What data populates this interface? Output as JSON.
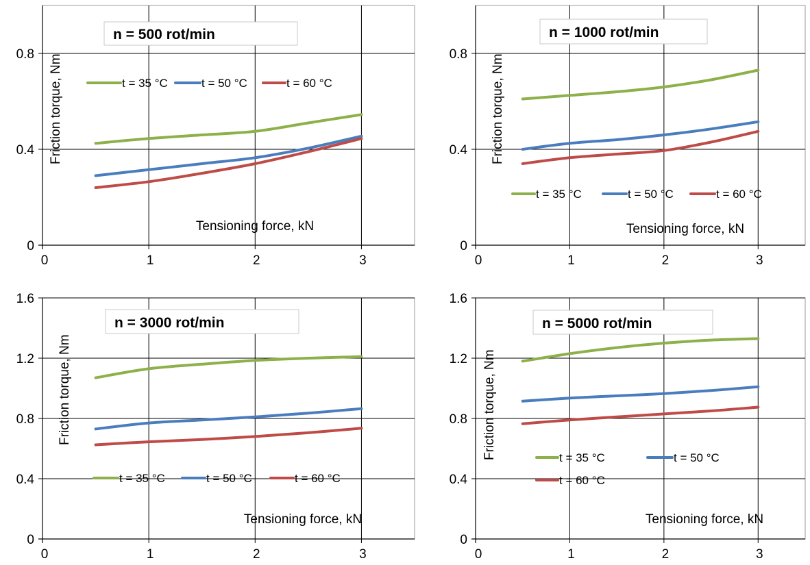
{
  "colors": {
    "green": "#8db04a",
    "blue": "#4a7dbd",
    "red": "#be4b48",
    "grid": "#000000"
  },
  "chart_data": [
    {
      "type": "line",
      "title": "n = 500 rot/min",
      "xlabel": "Tensioning force, kN",
      "ylabel": "Friction torque, Nm",
      "xlim": [
        0,
        3.5
      ],
      "ylim": [
        0,
        1.0
      ],
      "xticks": [
        0,
        1,
        2,
        3
      ],
      "yticks": [
        0,
        0.4,
        0.8
      ],
      "grid": true,
      "legend": "top",
      "series": [
        {
          "name": "t = 35 °C",
          "color": "green",
          "x": [
            0.5,
            1,
            1.5,
            2,
            2.5,
            3
          ],
          "y": [
            0.425,
            0.445,
            0.46,
            0.475,
            0.51,
            0.545
          ]
        },
        {
          "name": "t = 50 °C",
          "color": "blue",
          "x": [
            0.5,
            1,
            1.5,
            2,
            2.5,
            3
          ],
          "y": [
            0.29,
            0.315,
            0.34,
            0.365,
            0.405,
            0.455
          ]
        },
        {
          "name": "t = 60 °C",
          "color": "red",
          "x": [
            0.5,
            1,
            1.5,
            2,
            2.5,
            3
          ],
          "y": [
            0.24,
            0.265,
            0.3,
            0.34,
            0.39,
            0.445
          ]
        }
      ]
    },
    {
      "type": "line",
      "title": "n = 1000 rot/min",
      "xlabel": "Tensioning force, kN",
      "ylabel": "Friction torque, Nm",
      "xlim": [
        0,
        3.5
      ],
      "ylim": [
        0,
        1.0
      ],
      "xticks": [
        0,
        1,
        2,
        3
      ],
      "yticks": [
        0,
        0.4,
        0.8
      ],
      "grid": true,
      "legend": "middle",
      "series": [
        {
          "name": "t = 35 °C",
          "color": "green",
          "x": [
            0.5,
            1,
            1.5,
            2,
            2.5,
            3
          ],
          "y": [
            0.61,
            0.625,
            0.64,
            0.66,
            0.69,
            0.73
          ]
        },
        {
          "name": "t = 50 °C",
          "color": "blue",
          "x": [
            0.5,
            1,
            1.5,
            2,
            2.5,
            3
          ],
          "y": [
            0.4,
            0.425,
            0.44,
            0.46,
            0.485,
            0.515
          ]
        },
        {
          "name": "t = 60 °C",
          "color": "red",
          "x": [
            0.5,
            1,
            1.5,
            2,
            2.5,
            3
          ],
          "y": [
            0.34,
            0.365,
            0.38,
            0.395,
            0.43,
            0.475
          ]
        }
      ]
    },
    {
      "type": "line",
      "title": "n = 3000 rot/min",
      "xlabel": "Tensioning force, kN",
      "ylabel": "Friction torque, Nm",
      "xlim": [
        0,
        3.5
      ],
      "ylim": [
        0,
        1.6
      ],
      "xticks": [
        0,
        1,
        2,
        3
      ],
      "yticks": [
        0,
        0.4,
        0.8,
        1.2,
        1.6
      ],
      "grid": true,
      "legend": "bottom",
      "series": [
        {
          "name": "t = 35 °C",
          "color": "green",
          "x": [
            0.5,
            1,
            1.5,
            2,
            2.5,
            3
          ],
          "y": [
            1.07,
            1.13,
            1.16,
            1.185,
            1.2,
            1.21
          ]
        },
        {
          "name": "t = 50 °C",
          "color": "blue",
          "x": [
            0.5,
            1,
            1.5,
            2,
            2.5,
            3
          ],
          "y": [
            0.73,
            0.77,
            0.79,
            0.81,
            0.835,
            0.865
          ]
        },
        {
          "name": "t = 60 °C",
          "color": "red",
          "x": [
            0.5,
            1,
            1.5,
            2,
            2.5,
            3
          ],
          "y": [
            0.625,
            0.645,
            0.66,
            0.68,
            0.705,
            0.735
          ]
        }
      ]
    },
    {
      "type": "line",
      "title": "n = 5000 rot/min",
      "xlabel": "Tensioning force, kN",
      "ylabel": "Friction torque, Nm",
      "xlim": [
        0,
        3.5
      ],
      "ylim": [
        0,
        1.6
      ],
      "xticks": [
        0,
        1,
        2,
        3
      ],
      "yticks": [
        0,
        0.4,
        0.8,
        1.2,
        1.6
      ],
      "grid": true,
      "legend": "bottom",
      "series": [
        {
          "name": "t = 35 °C",
          "color": "green",
          "x": [
            0.5,
            1,
            1.5,
            2,
            2.5,
            3
          ],
          "y": [
            1.18,
            1.23,
            1.27,
            1.3,
            1.32,
            1.33
          ]
        },
        {
          "name": "t = 50 °C",
          "color": "blue",
          "x": [
            0.5,
            1,
            1.5,
            2,
            2.5,
            3
          ],
          "y": [
            0.915,
            0.935,
            0.95,
            0.965,
            0.985,
            1.01
          ]
        },
        {
          "name": "t = 60 °C",
          "color": "red",
          "x": [
            0.5,
            1,
            1.5,
            2,
            2.5,
            3
          ],
          "y": [
            0.765,
            0.79,
            0.81,
            0.83,
            0.85,
            0.875
          ]
        }
      ]
    }
  ]
}
